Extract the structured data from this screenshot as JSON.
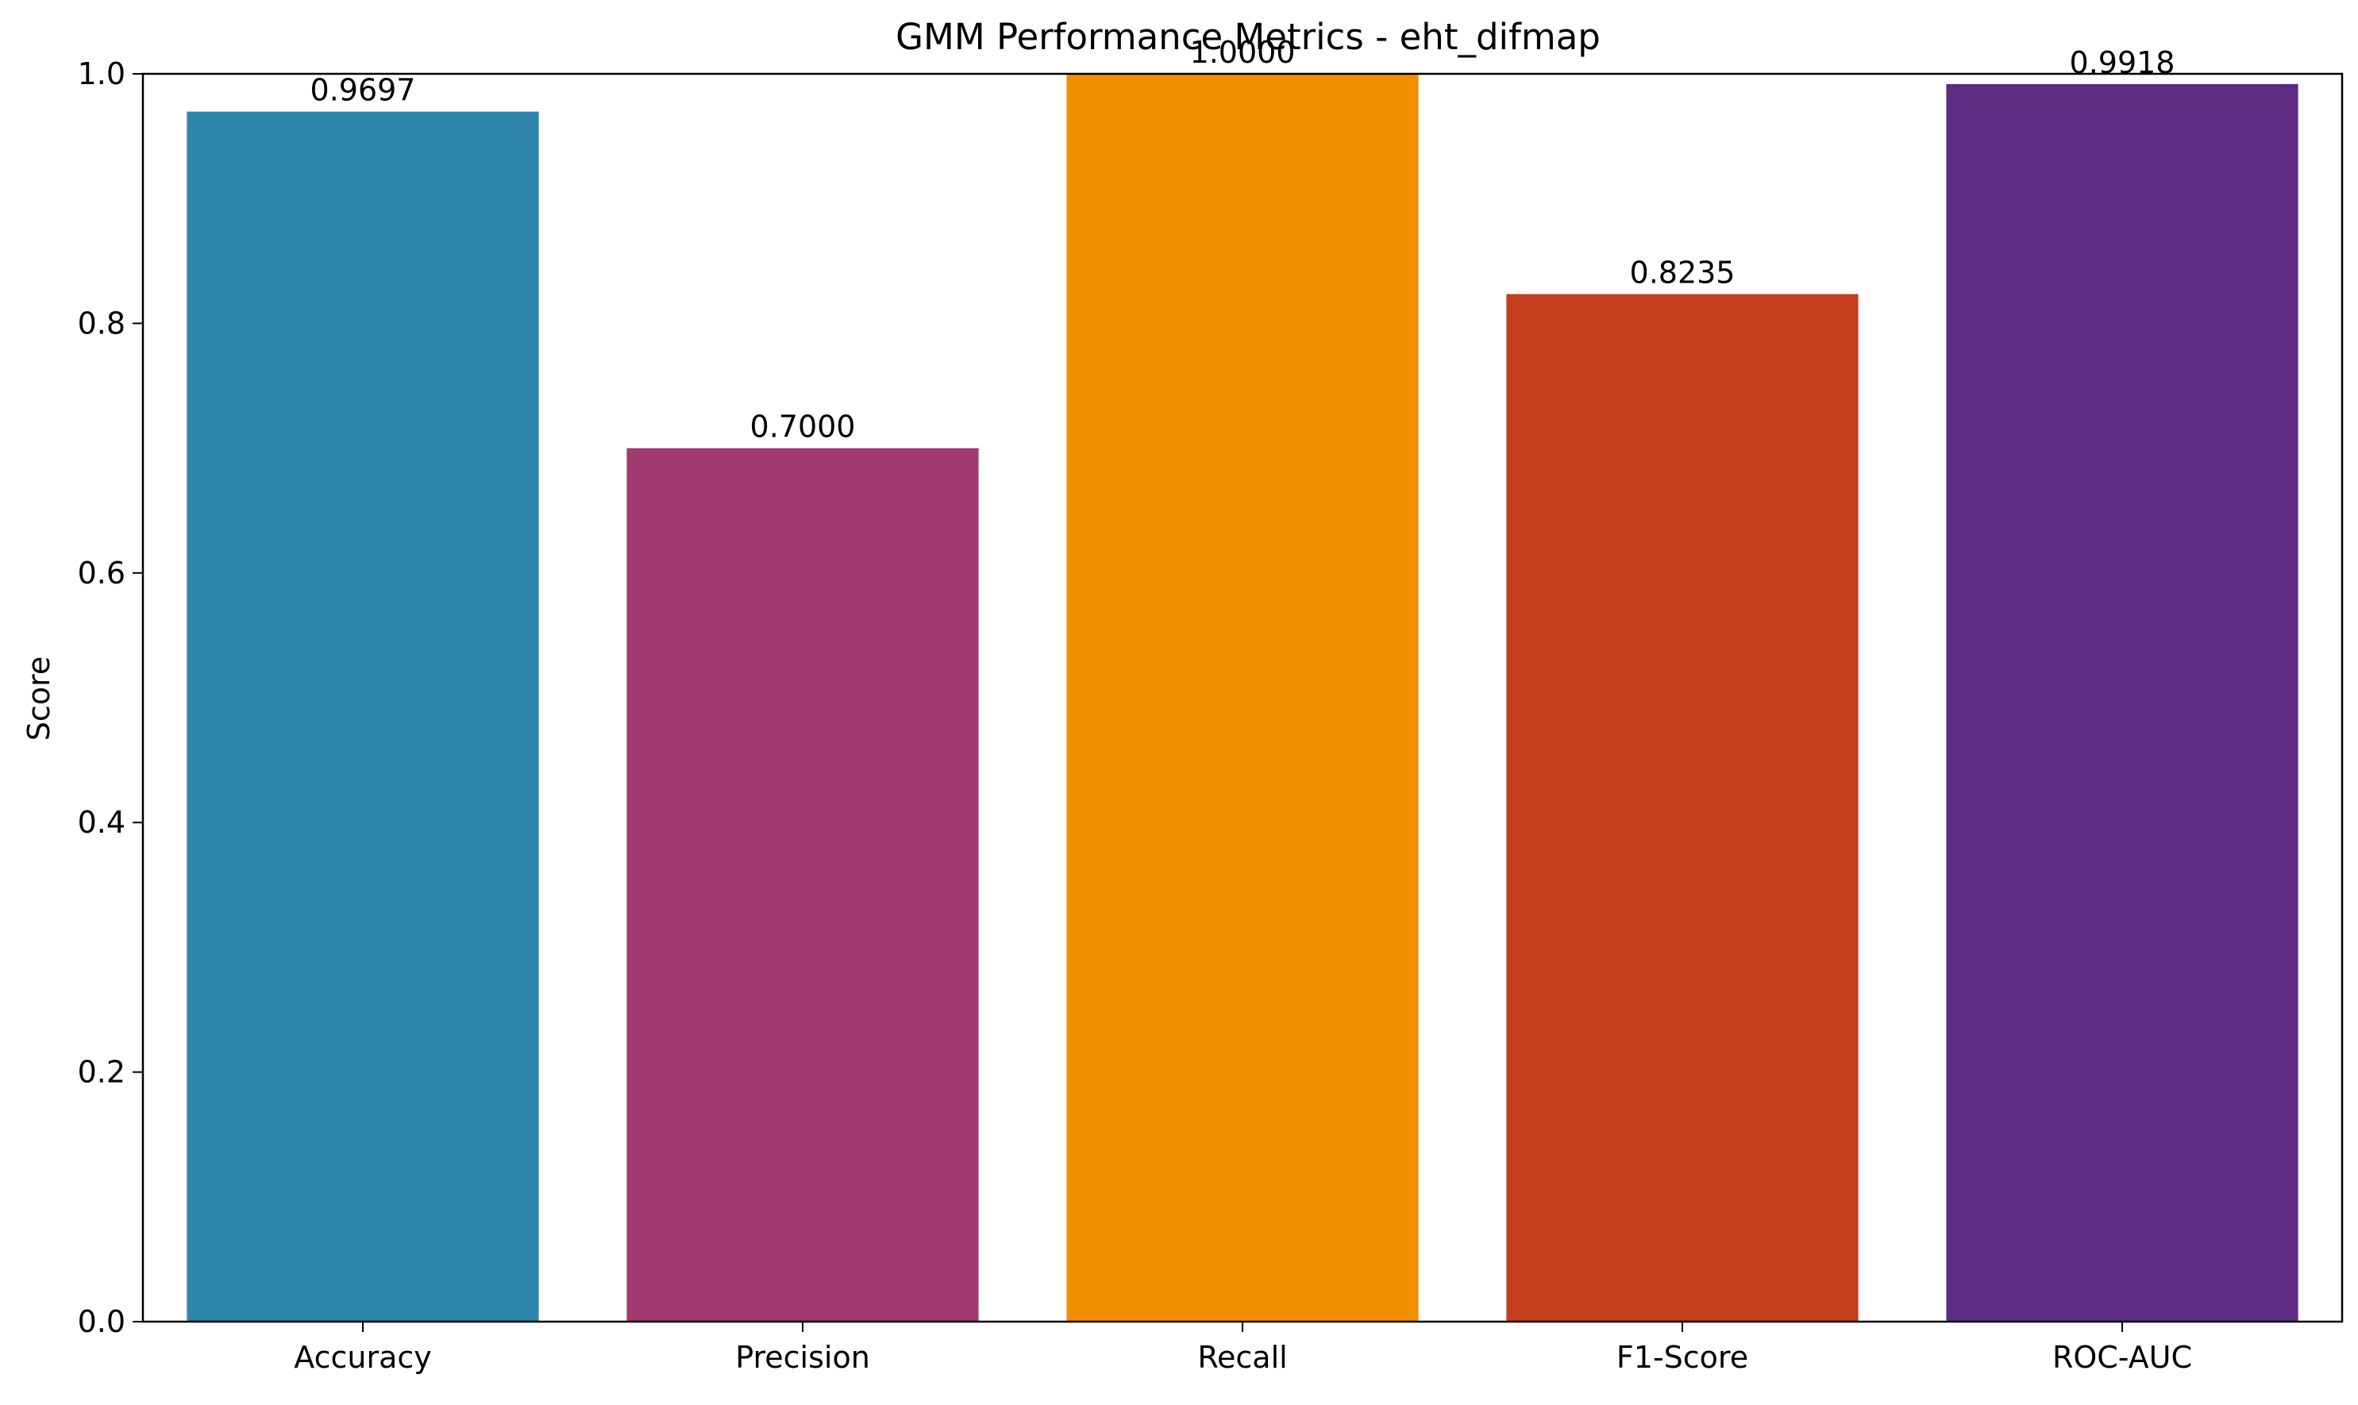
{
  "chart_data": {
    "type": "bar",
    "title": "GMM Performance Metrics - eht_difmap",
    "xlabel": "",
    "ylabel": "Score",
    "categories": [
      "Accuracy",
      "Precision",
      "Recall",
      "F1-Score",
      "ROC-AUC"
    ],
    "values": [
      0.9697,
      0.7,
      1.0,
      0.8235,
      0.9918
    ],
    "value_labels": [
      "0.9697",
      "0.7000",
      "1.0000",
      "0.8235",
      "0.9918"
    ],
    "colors": [
      "#2E86AB",
      "#A23B72",
      "#F18F01",
      "#C73E1D",
      "#5B2C81"
    ],
    "ylim": [
      0,
      1.0
    ],
    "yticks": [
      0.0,
      0.2,
      0.4,
      0.6,
      0.8,
      1.0
    ],
    "ytick_labels": [
      "0.0",
      "0.2",
      "0.4",
      "0.6",
      "0.8",
      "1.0"
    ],
    "grid": false,
    "legend": "none"
  }
}
